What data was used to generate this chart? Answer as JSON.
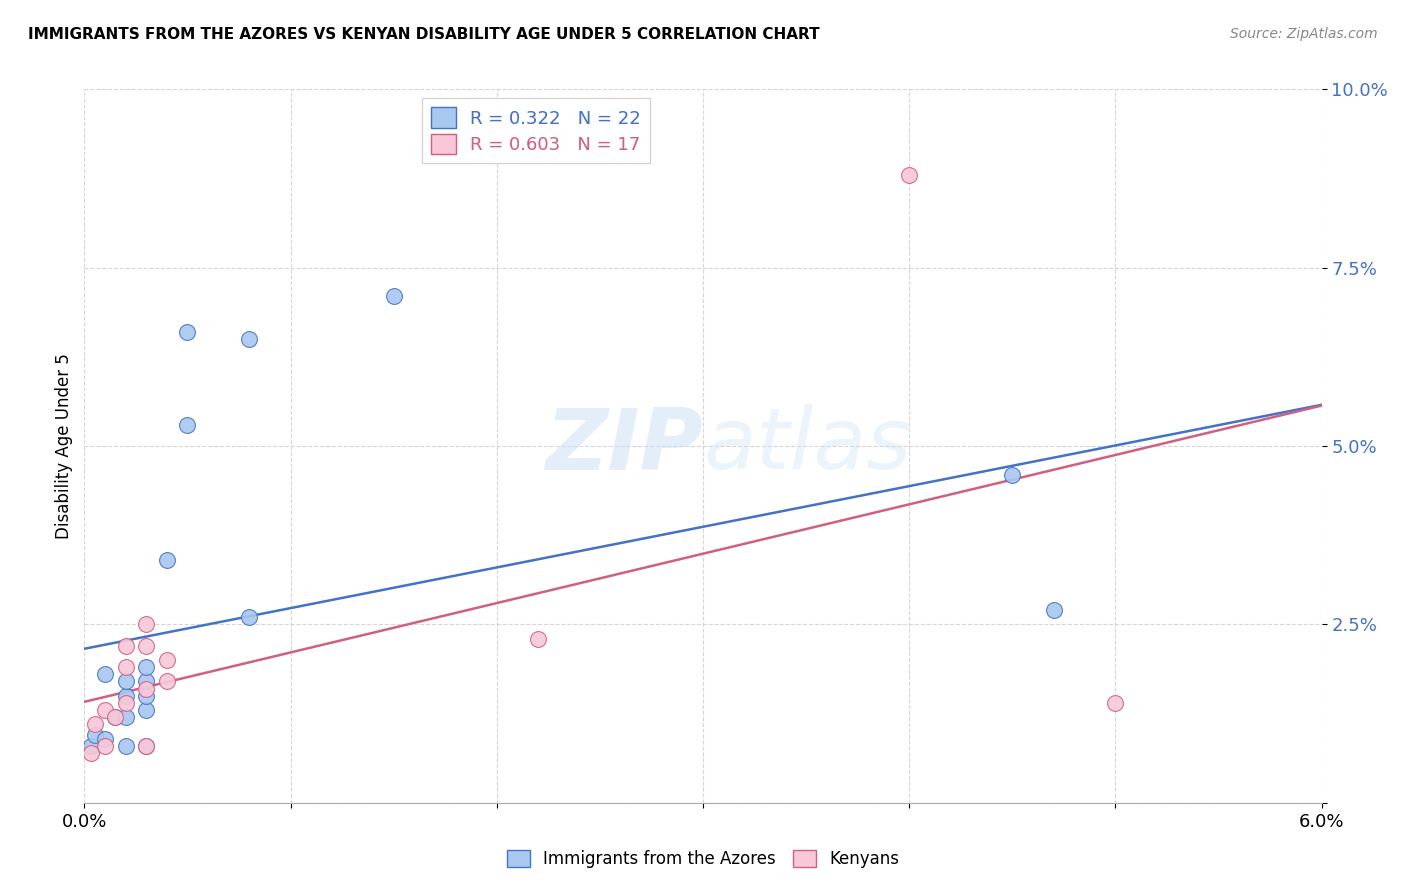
{
  "title": "IMMIGRANTS FROM THE AZORES VS KENYAN DISABILITY AGE UNDER 5 CORRELATION CHART",
  "source": "Source: ZipAtlas.com",
  "ylabel": "Disability Age Under 5",
  "xlim": [
    0.0,
    0.06
  ],
  "ylim": [
    0.0,
    0.1
  ],
  "xticks": [
    0.0,
    0.01,
    0.02,
    0.03,
    0.04,
    0.05,
    0.06
  ],
  "yticks": [
    0.0,
    0.025,
    0.05,
    0.075,
    0.1
  ],
  "ytick_labels": [
    "",
    "2.5%",
    "5.0%",
    "7.5%",
    "10.0%"
  ],
  "azores_x": [
    0.0003,
    0.0005,
    0.001,
    0.001,
    0.0015,
    0.002,
    0.002,
    0.002,
    0.002,
    0.003,
    0.003,
    0.003,
    0.003,
    0.003,
    0.004,
    0.005,
    0.005,
    0.008,
    0.008,
    0.015,
    0.045,
    0.047
  ],
  "azores_y": [
    0.008,
    0.0095,
    0.009,
    0.018,
    0.012,
    0.008,
    0.012,
    0.015,
    0.017,
    0.008,
    0.013,
    0.015,
    0.017,
    0.019,
    0.034,
    0.053,
    0.066,
    0.065,
    0.026,
    0.071,
    0.046,
    0.027
  ],
  "kenyan_x": [
    0.0003,
    0.0005,
    0.001,
    0.001,
    0.0015,
    0.002,
    0.002,
    0.002,
    0.003,
    0.003,
    0.003,
    0.003,
    0.004,
    0.004,
    0.022,
    0.04,
    0.05
  ],
  "kenyan_y": [
    0.007,
    0.011,
    0.008,
    0.013,
    0.012,
    0.014,
    0.019,
    0.022,
    0.008,
    0.016,
    0.022,
    0.025,
    0.02,
    0.017,
    0.023,
    0.088,
    0.014
  ],
  "azores_color": "#a8c8f0",
  "azores_edge_color": "#4472c4",
  "kenyan_color": "#f8c8d8",
  "kenyan_edge_color": "#d06080",
  "azores_line_color": "#4472c4",
  "kenyan_line_color": "#d06080",
  "R_azores": "0.322",
  "N_azores": "22",
  "R_kenyan": "0.603",
  "N_kenyan": "17",
  "legend_label_azores": "Immigrants from the Azores",
  "legend_label_kenyan": "Kenyans",
  "watermark_zip": "ZIP",
  "watermark_atlas": "atlas",
  "background_color": "#ffffff",
  "grid_color": "#cccccc"
}
